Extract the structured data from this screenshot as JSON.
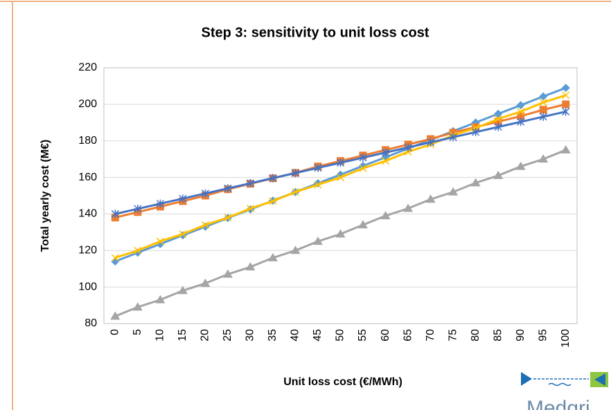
{
  "chart_data": {
    "type": "line",
    "title": "Step 3: sensitivity to unit loss cost",
    "x_label": "Unit loss cost (€/MWh)",
    "y_label": "Total yearly cost (M€)",
    "logo": "Medgri",
    "categories": [
      "0",
      "5",
      "10",
      "15",
      "20",
      "25",
      "30",
      "35",
      "40",
      "45",
      "50",
      "55",
      "60",
      "65",
      "70",
      "75",
      "80",
      "85",
      "90",
      "95",
      "100"
    ],
    "series": [
      {
        "color": "#a5a5a5",
        "marker": "triangle",
        "values": [
          84,
          89,
          93,
          98,
          102,
          107,
          111,
          116,
          120,
          125,
          129,
          134,
          139,
          143,
          148,
          152,
          157,
          161,
          166,
          170,
          175
        ]
      },
      {
        "color": "#5b9bd5",
        "marker": "diamond",
        "values": [
          114,
          118.8,
          123.5,
          128.3,
          133,
          137.8,
          142.5,
          147.3,
          152,
          156.8,
          161.5,
          166.3,
          171,
          175.8,
          180.5,
          185.3,
          190,
          194.8,
          199.5,
          204.3,
          209
        ]
      },
      {
        "color": "#ed7d31",
        "marker": "square",
        "values": [
          138,
          141,
          144,
          147,
          150,
          153.5,
          156.5,
          159.5,
          162.5,
          166,
          169,
          172,
          175,
          178,
          181,
          184.5,
          187.5,
          190.5,
          193.5,
          197,
          200
        ]
      },
      {
        "color": "#ffc000",
        "marker": "x",
        "values": [
          116,
          120,
          125,
          129,
          134,
          138,
          143,
          147,
          152,
          156,
          160,
          165,
          169,
          174,
          178,
          183,
          187,
          192,
          196,
          201,
          205
        ]
      },
      {
        "color": "#4472c4",
        "marker": "asterisk",
        "values": [
          140,
          142.8,
          145.6,
          148.4,
          151.2,
          154,
          156.8,
          159.6,
          162.4,
          165.2,
          168,
          170.8,
          173.6,
          176.4,
          179.2,
          182,
          184.8,
          187.6,
          190.4,
          193.2,
          196
        ]
      }
    ],
    "ylim": [
      80,
      220
    ],
    "yticks": [
      80,
      100,
      120,
      140,
      160,
      180,
      200,
      220
    ],
    "grid": true
  }
}
